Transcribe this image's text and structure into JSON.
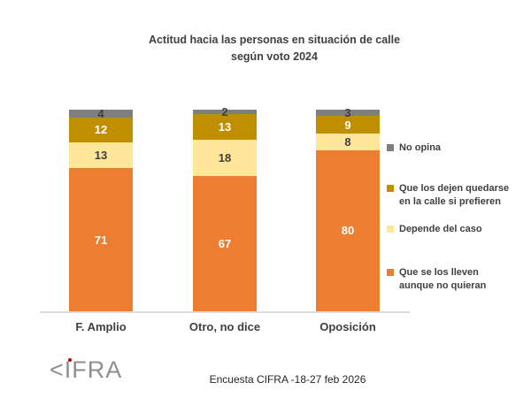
{
  "chart_data": {
    "type": "stacked-bar",
    "title": "Actitud hacia las personas en situación de calle\nsegún voto 2024",
    "categories": [
      "F. Amplio",
      "Otro, no dice",
      "Oposición"
    ],
    "series": [
      {
        "name": "Que se los lleven aunque no quieran",
        "color": "#ED7D31",
        "label_color": "#FFFFFF",
        "values": [
          71,
          67,
          80
        ]
      },
      {
        "name": "Depende del caso",
        "color": "#FFE699",
        "label_color": "#404040",
        "values": [
          13,
          18,
          8
        ]
      },
      {
        "name": "Que los dejen quedarse en la calle si prefieren",
        "color": "#BF8F00",
        "label_color": "#FFFFFF",
        "values": [
          12,
          13,
          9
        ]
      },
      {
        "name": "No opina",
        "color": "#7F7F7F",
        "label_color": "#404040",
        "values": [
          4,
          2,
          3
        ]
      }
    ],
    "ylim": [
      0,
      100
    ],
    "stack_total": 100,
    "grid": false,
    "data_labels": true,
    "legend_position": "right",
    "legend": [
      {
        "label": "No opina",
        "display": "No opina",
        "color": "#7F7F7F"
      },
      {
        "label": "Que los dejen quedarse en la calle si prefieren",
        "display": "Que los dejen quedarse\nen la calle si prefieren",
        "color": "#BF8F00"
      },
      {
        "label": "Depende del caso",
        "display": "Depende del caso",
        "color": "#FFE699"
      },
      {
        "label": "Que se los lleven aunque no quieran",
        "display": "Que se los lleven\naunque no quieran",
        "color": "#ED7D31"
      }
    ]
  },
  "colors": {
    "axis_line": "#DCDCDC",
    "text_dark": "#404040",
    "logo_gray": "#8f8f8f",
    "logo_dot_red": "#C00000"
  },
  "logo": {
    "text": "<IFRA"
  },
  "footer": {
    "source_text": "Encuesta CIFRA -18-27 feb 2026"
  }
}
